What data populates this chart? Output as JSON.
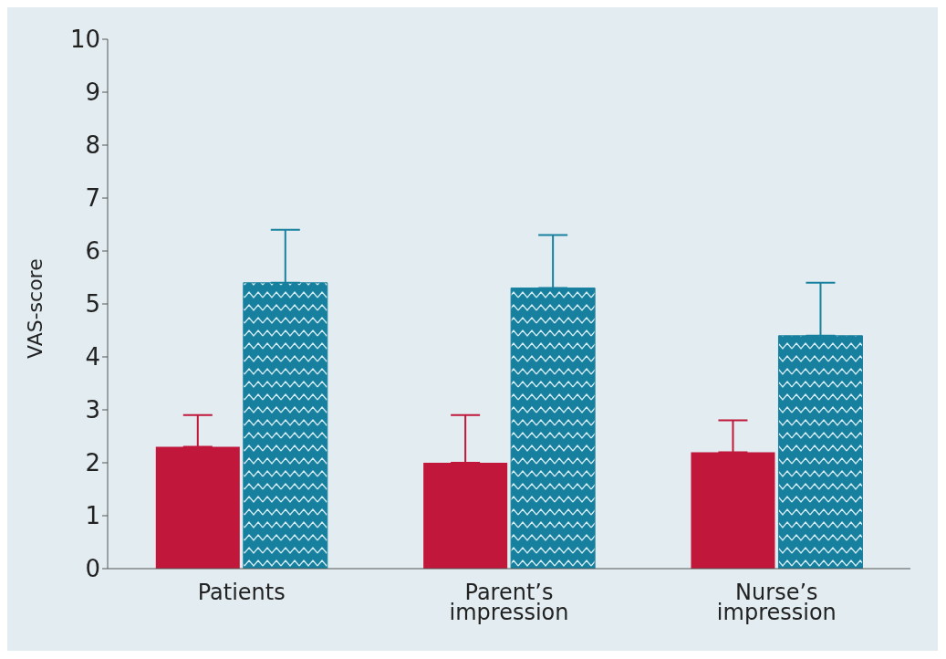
{
  "chart_data": {
    "type": "bar",
    "ylabel": "VAS-score",
    "categories": [
      "Patients",
      "Parent’s\nimpression",
      "Nurse’s\nimpression"
    ],
    "series": [
      {
        "color": "#c0173a",
        "values": [
          2.3,
          2.0,
          2.2
        ],
        "errors": [
          [
            2.3,
            2.9
          ],
          [
            2.0,
            2.9
          ],
          [
            2.2,
            2.8
          ]
        ]
      },
      {
        "color": "#17809e",
        "values": [
          5.4,
          5.3,
          4.4
        ],
        "errors": [
          [
            5.4,
            6.4
          ],
          [
            5.3,
            6.3
          ],
          [
            4.4,
            5.4
          ]
        ]
      }
    ],
    "ylim": [
      0,
      10
    ],
    "yticks": [
      0,
      1,
      2,
      3,
      4,
      5,
      6,
      7,
      8,
      9,
      10
    ],
    "grid": false,
    "legend": false
  }
}
